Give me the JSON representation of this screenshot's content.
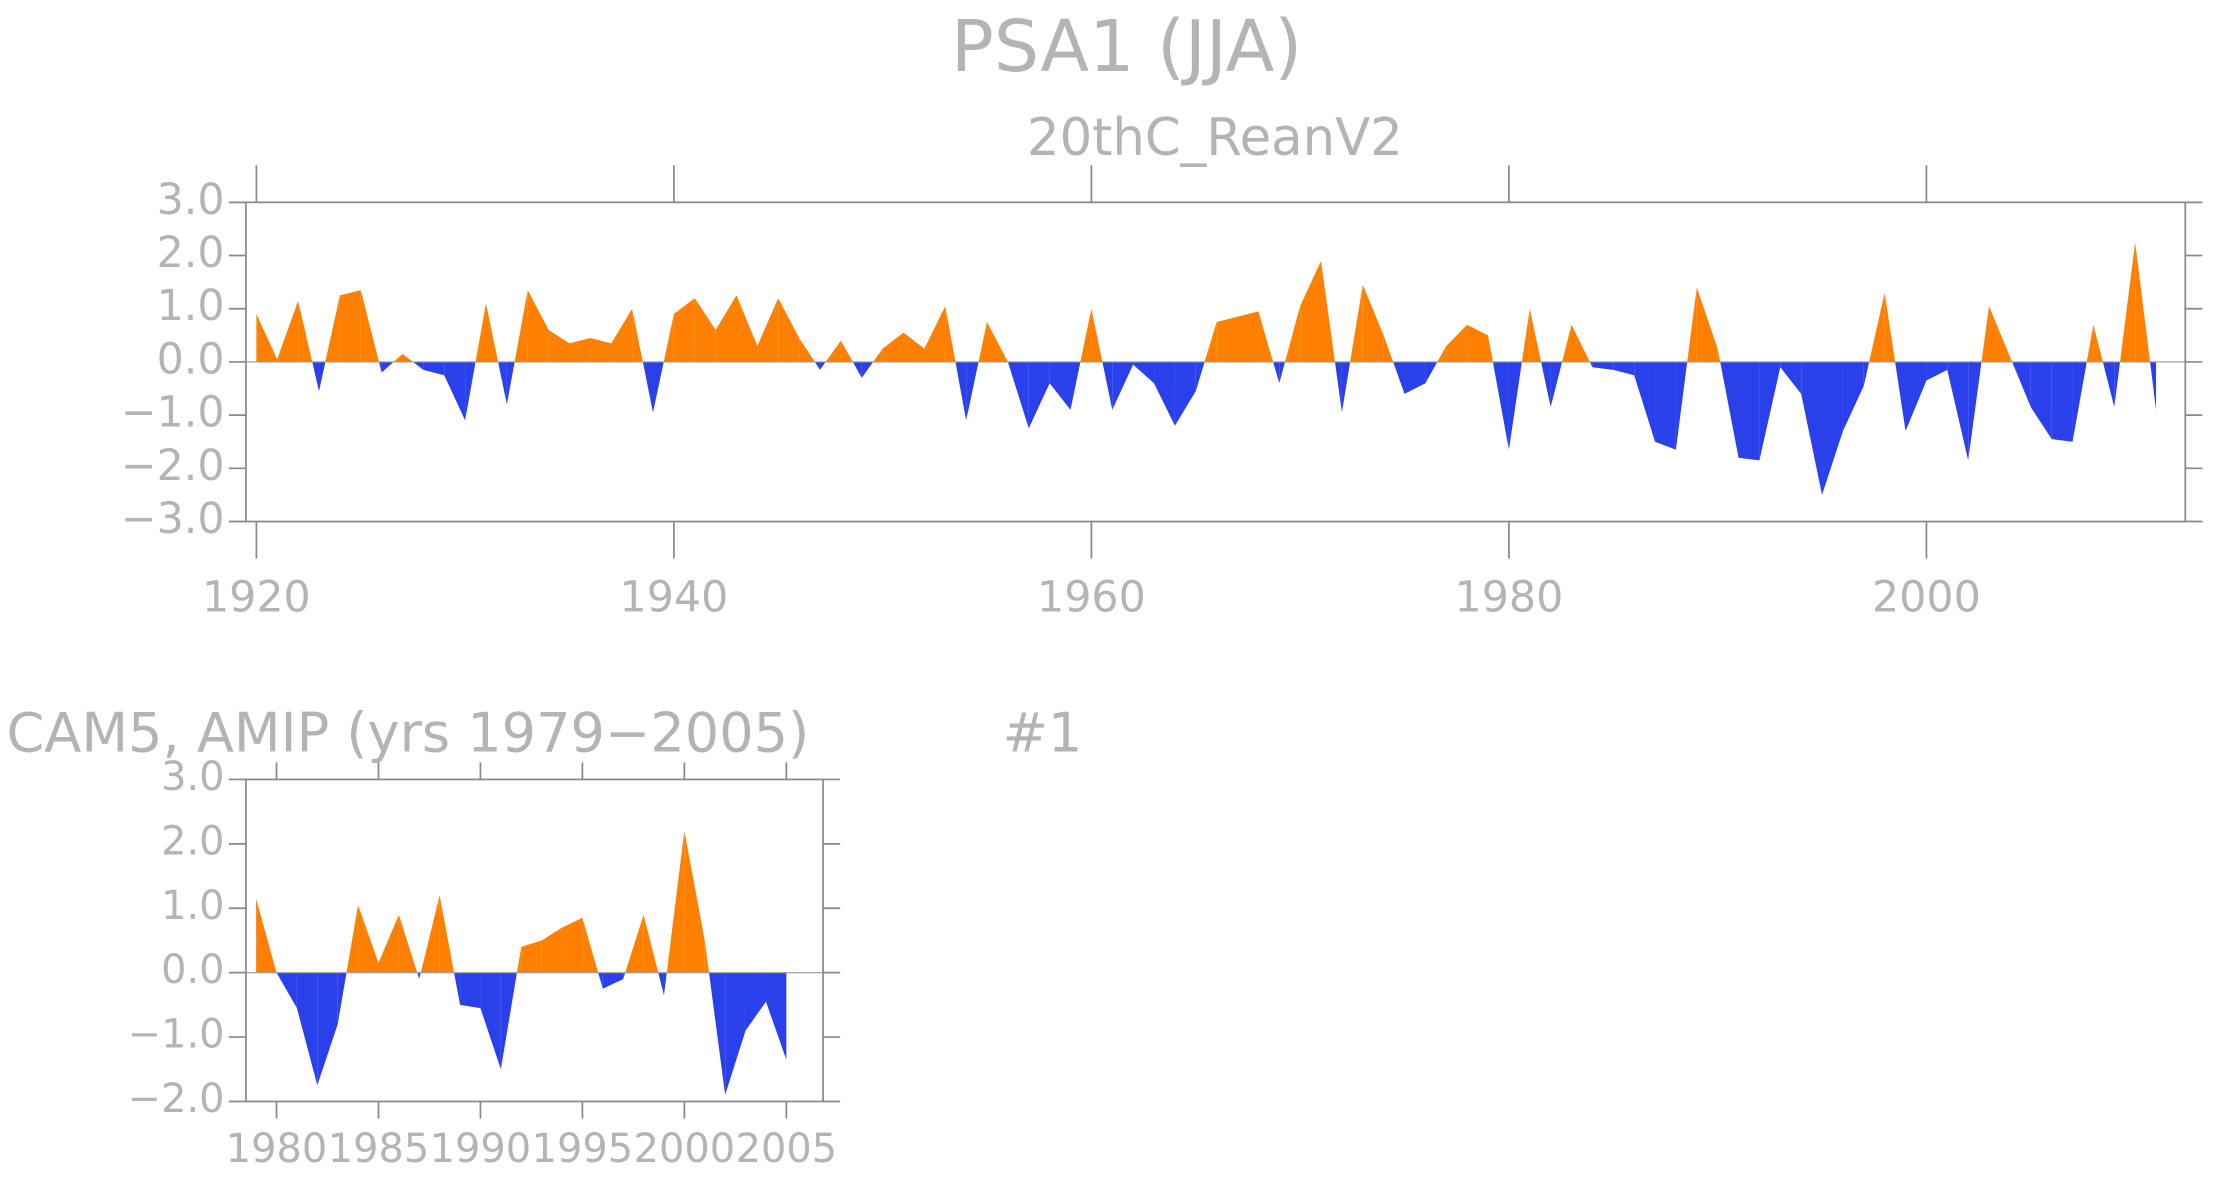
{
  "chart_data": [
    {
      "type": "area",
      "title": "PSA1 (JJA)",
      "subtitle": "20thC_ReanV2",
      "x": [
        1920,
        1921,
        1922,
        1923,
        1924,
        1925,
        1926,
        1927,
        1928,
        1929,
        1930,
        1931,
        1932,
        1933,
        1934,
        1935,
        1936,
        1937,
        1938,
        1939,
        1940,
        1941,
        1942,
        1943,
        1944,
        1945,
        1946,
        1947,
        1948,
        1949,
        1950,
        1951,
        1952,
        1953,
        1954,
        1955,
        1956,
        1957,
        1958,
        1959,
        1960,
        1961,
        1962,
        1963,
        1964,
        1965,
        1966,
        1967,
        1968,
        1969,
        1970,
        1971,
        1972,
        1973,
        1974,
        1975,
        1976,
        1977,
        1978,
        1979,
        1980,
        1981,
        1982,
        1983,
        1984,
        1985,
        1986,
        1987,
        1988,
        1989,
        1990,
        1991,
        1992,
        1993,
        1994,
        1995,
        1996,
        1997,
        1998,
        1999,
        2000,
        2001,
        2002,
        2003,
        2004,
        2005,
        2006,
        2007,
        2008,
        2009,
        2010,
        2011
      ],
      "values": [
        0.9,
        0.05,
        1.15,
        -0.55,
        1.25,
        1.35,
        -0.2,
        0.15,
        -0.15,
        -0.25,
        -1.1,
        1.1,
        -0.8,
        1.35,
        0.6,
        0.35,
        0.45,
        0.35,
        1.0,
        -0.95,
        0.9,
        1.2,
        0.6,
        1.25,
        0.3,
        1.2,
        0.45,
        -0.15,
        0.4,
        -0.3,
        0.25,
        0.55,
        0.25,
        1.05,
        -1.1,
        0.75,
        0.0,
        -1.25,
        -0.4,
        -0.9,
        1.0,
        -0.9,
        -0.05,
        -0.4,
        -1.2,
        -0.55,
        0.75,
        0.85,
        0.95,
        -0.4,
        1.05,
        1.9,
        -0.95,
        1.45,
        0.5,
        -0.6,
        -0.4,
        0.3,
        0.7,
        0.5,
        -1.65,
        1.0,
        -0.85,
        0.7,
        -0.1,
        -0.15,
        -0.25,
        -1.5,
        -1.65,
        1.4,
        0.25,
        -1.8,
        -1.85,
        -0.1,
        -0.6,
        -2.5,
        -1.3,
        -0.45,
        1.3,
        -1.3,
        -0.35,
        -0.15,
        -1.85,
        1.05,
        0.1,
        -0.85,
        -1.45,
        -1.5,
        0.7,
        -0.85,
        2.25,
        -0.9
      ],
      "pos_color": "#ff8000",
      "neg_color": "#2a40ea",
      "xlim": [
        1919.5,
        2012.4
      ],
      "xticks": [
        1920,
        1940,
        1960,
        1980,
        2000
      ],
      "ylim": [
        -3,
        3
      ],
      "yticks": [
        {
          "value": 3,
          "label": "3.0"
        },
        {
          "value": 2,
          "label": "2.0"
        },
        {
          "value": 1,
          "label": "1.0"
        },
        {
          "value": 0,
          "label": "0.0"
        },
        {
          "value": -1,
          "label": "−1.0"
        },
        {
          "value": -2,
          "label": "−2.0"
        },
        {
          "value": -3,
          "label": "−3.0"
        }
      ]
    },
    {
      "type": "area",
      "title": "CAM5, AMIP (yrs 1979−2005)",
      "annotation": "#1",
      "x": [
        1979,
        1980,
        1981,
        1982,
        1983,
        1984,
        1985,
        1986,
        1987,
        1988,
        1989,
        1990,
        1991,
        1992,
        1993,
        1994,
        1995,
        1996,
        1997,
        1998,
        1999,
        2000,
        2001,
        2002,
        2003,
        2004,
        2005
      ],
      "values": [
        1.15,
        0.0,
        -0.55,
        -1.75,
        -0.8,
        1.05,
        0.15,
        0.9,
        -0.1,
        1.2,
        -0.5,
        -0.55,
        -1.5,
        0.4,
        0.5,
        0.7,
        0.85,
        -0.25,
        -0.1,
        0.9,
        -0.35,
        2.2,
        0.5,
        -1.9,
        -0.9,
        -0.45,
        -1.35
      ],
      "pos_color": "#ff8000",
      "neg_color": "#2a40ea",
      "xlim": [
        1978.5,
        2006.8
      ],
      "xticks": [
        1980,
        1985,
        1990,
        1995,
        2000,
        2005
      ],
      "ylim": [
        -2,
        3
      ],
      "yticks": [
        {
          "value": 3,
          "label": "3.0"
        },
        {
          "value": 2,
          "label": "2.0"
        },
        {
          "value": 1,
          "label": "1.0"
        },
        {
          "value": 0,
          "label": "0.0"
        },
        {
          "value": -1,
          "label": "−1.0"
        },
        {
          "value": -2,
          "label": "−2.0"
        }
      ]
    }
  ]
}
